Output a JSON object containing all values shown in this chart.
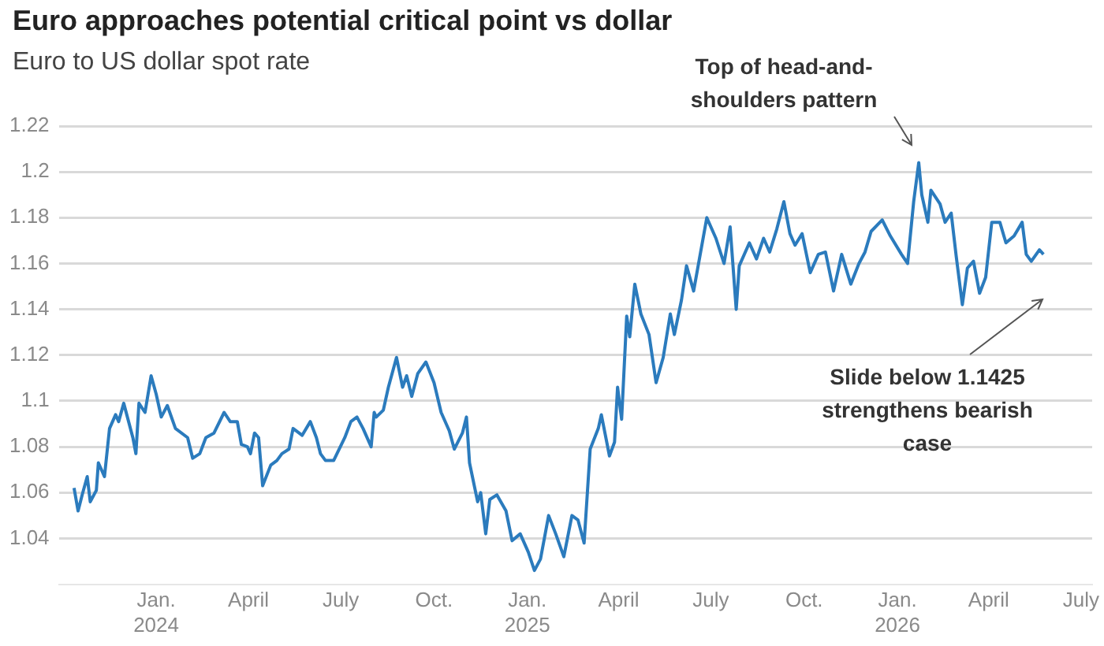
{
  "chart_data": {
    "type": "line",
    "title": "Euro approaches potential critical point vs dollar",
    "subtitle": "Euro to US dollar spot rate",
    "x": [
      "2023-10-12",
      "2023-10-16",
      "2023-10-20",
      "2023-10-25",
      "2023-10-28",
      "2023-11-03",
      "2023-11-05",
      "2023-11-11",
      "2023-11-16",
      "2023-11-22",
      "2023-11-25",
      "2023-11-30",
      "2023-12-09",
      "2023-12-12",
      "2023-12-15",
      "2023-12-21",
      "2023-12-27",
      "2024-01-01",
      "2024-01-06",
      "2024-01-12",
      "2024-01-20",
      "2024-02-01",
      "2024-02-06",
      "2024-02-13",
      "2024-02-19",
      "2024-02-27",
      "2024-03-08",
      "2024-03-14",
      "2024-03-21",
      "2024-03-25",
      "2024-03-31",
      "2024-04-03",
      "2024-04-07",
      "2024-04-11",
      "2024-04-15",
      "2024-04-23",
      "2024-04-29",
      "2024-05-04",
      "2024-05-11",
      "2024-05-15",
      "2024-05-24",
      "2024-06-01",
      "2024-06-07",
      "2024-06-11",
      "2024-06-16",
      "2024-06-24",
      "2024-07-05",
      "2024-07-11",
      "2024-07-17",
      "2024-07-23",
      "2024-07-31",
      "2024-08-03",
      "2024-08-05",
      "2024-08-12",
      "2024-08-17",
      "2024-08-25",
      "2024-08-31",
      "2024-09-04",
      "2024-09-09",
      "2024-09-15",
      "2024-09-23",
      "2024-10-01",
      "2024-10-08",
      "2024-10-16",
      "2024-10-21",
      "2024-10-29",
      "2024-11-02",
      "2024-11-05",
      "2024-11-13",
      "2024-11-16",
      "2024-11-21",
      "2024-11-25",
      "2024-12-02",
      "2024-12-11",
      "2024-12-17",
      "2024-12-25",
      "2025-01-02",
      "2025-01-08",
      "2025-01-14",
      "2025-01-22",
      "2025-01-29",
      "2025-02-06",
      "2025-02-14",
      "2025-02-20",
      "2025-02-26",
      "2025-03-04",
      "2025-03-12",
      "2025-03-15",
      "2025-03-23",
      "2025-03-28",
      "2025-03-31",
      "2025-04-04",
      "2025-04-09",
      "2025-04-12",
      "2025-04-17",
      "2025-04-23",
      "2025-05-01",
      "2025-05-08",
      "2025-05-15",
      "2025-05-22",
      "2025-05-26",
      "2025-06-02",
      "2025-06-07",
      "2025-06-14",
      "2025-06-27",
      "2025-07-06",
      "2025-07-14",
      "2025-07-20",
      "2025-07-26",
      "2025-07-29",
      "2025-08-08",
      "2025-08-15",
      "2025-08-22",
      "2025-08-28",
      "2025-09-04",
      "2025-09-11",
      "2025-09-17",
      "2025-09-22",
      "2025-09-29",
      "2025-10-07",
      "2025-10-15",
      "2025-10-22",
      "2025-10-30",
      "2025-11-07",
      "2025-11-16",
      "2025-11-24",
      "2025-11-30",
      "2025-12-06",
      "2025-12-17",
      "2025-12-25",
      "2026-01-05",
      "2026-01-11",
      "2026-01-17",
      "2026-01-22",
      "2026-01-25",
      "2026-01-31",
      "2026-02-03",
      "2026-02-12",
      "2026-02-17",
      "2026-02-23",
      "2026-02-28",
      "2026-03-06",
      "2026-03-11",
      "2026-03-17",
      "2026-03-23",
      "2026-03-29",
      "2026-04-04",
      "2026-04-12",
      "2026-04-18",
      "2026-04-26",
      "2026-05-04",
      "2026-05-08",
      "2026-05-13",
      "2026-05-21",
      "2026-05-25"
    ],
    "series": [
      {
        "color": "#2b7bbd",
        "values": [
          1.062,
          1.052,
          1.059,
          1.067,
          1.056,
          1.061,
          1.073,
          1.067,
          1.088,
          1.094,
          1.091,
          1.099,
          1.084,
          1.077,
          1.099,
          1.095,
          1.111,
          1.103,
          1.093,
          1.098,
          1.088,
          1.084,
          1.075,
          1.077,
          1.084,
          1.086,
          1.095,
          1.091,
          1.091,
          1.081,
          1.08,
          1.077,
          1.086,
          1.084,
          1.063,
          1.072,
          1.074,
          1.077,
          1.079,
          1.088,
          1.085,
          1.091,
          1.084,
          1.077,
          1.074,
          1.074,
          1.084,
          1.091,
          1.093,
          1.088,
          1.08,
          1.095,
          1.093,
          1.096,
          1.106,
          1.119,
          1.106,
          1.111,
          1.102,
          1.112,
          1.117,
          1.108,
          1.095,
          1.087,
          1.079,
          1.086,
          1.093,
          1.073,
          1.056,
          1.06,
          1.042,
          1.057,
          1.059,
          1.052,
          1.039,
          1.042,
          1.034,
          1.026,
          1.031,
          1.05,
          1.042,
          1.032,
          1.05,
          1.048,
          1.038,
          1.079,
          1.088,
          1.094,
          1.076,
          1.082,
          1.106,
          1.092,
          1.137,
          1.128,
          1.151,
          1.138,
          1.129,
          1.108,
          1.119,
          1.138,
          1.129,
          1.144,
          1.159,
          1.148,
          1.18,
          1.171,
          1.16,
          1.176,
          1.14,
          1.159,
          1.169,
          1.162,
          1.171,
          1.165,
          1.175,
          1.187,
          1.173,
          1.168,
          1.173,
          1.156,
          1.164,
          1.165,
          1.148,
          1.164,
          1.151,
          1.16,
          1.165,
          1.174,
          1.179,
          1.172,
          1.164,
          1.16,
          1.187,
          1.204,
          1.19,
          1.178,
          1.192,
          1.186,
          1.178,
          1.182,
          1.163,
          1.142,
          1.158,
          1.161,
          1.147,
          1.154,
          1.178,
          1.178,
          1.169,
          1.172,
          1.178,
          1.164,
          1.161,
          1.166,
          1.164
        ]
      }
    ],
    "xlim": [
      "2023-09-27",
      "2026-07-12"
    ],
    "xticks": [
      {
        "value": "2024-01-01",
        "label": "Jan.\n2024"
      },
      {
        "value": "2024-04-01",
        "label": "April"
      },
      {
        "value": "2024-07-01",
        "label": "July"
      },
      {
        "value": "2024-10-01",
        "label": "Oct."
      },
      {
        "value": "2025-01-01",
        "label": "Jan.\n2025"
      },
      {
        "value": "2025-04-01",
        "label": "April"
      },
      {
        "value": "2025-07-01",
        "label": "July"
      },
      {
        "value": "2025-10-01",
        "label": "Oct."
      },
      {
        "value": "2026-01-01",
        "label": "Jan.\n2026"
      },
      {
        "value": "2026-04-01",
        "label": "April"
      },
      {
        "value": "2026-07-01",
        "label": "July"
      }
    ],
    "ylim": [
      1.02,
      1.22
    ],
    "yticks": [
      1.04,
      1.06,
      1.08,
      1.1,
      1.12,
      1.14,
      1.16,
      1.18,
      1.2,
      1.22
    ],
    "grid": "y",
    "legend": false,
    "annotations": [
      "Top of head-and-shoulders pattern",
      "Slide below 1.1425 strengthens bearish case"
    ]
  }
}
